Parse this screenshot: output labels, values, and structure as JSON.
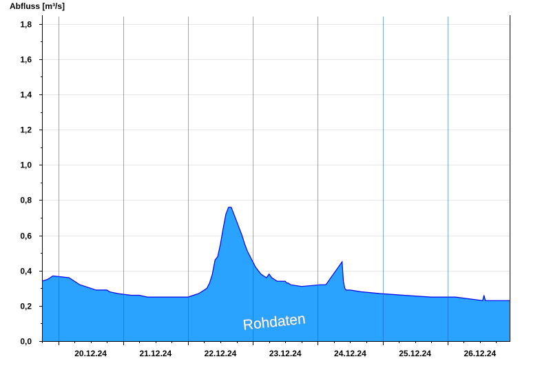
{
  "chart_data": {
    "type": "area",
    "ylabel": "Abfluss [m³/s]",
    "ylim": [
      0,
      1.85
    ],
    "yticks": [
      "0,0",
      "0,2",
      "0,4",
      "0,6",
      "0,8",
      "1,0",
      "1,2",
      "1,4",
      "1,6",
      "1,8"
    ],
    "ytick_values": [
      0,
      0.2,
      0.4,
      0.6,
      0.8,
      1.0,
      1.2,
      1.4,
      1.6,
      1.8
    ],
    "xlim": [
      "2024-12-19 18:00",
      "2024-12-26 23:00"
    ],
    "xticks": [
      "20.12.24",
      "21.12.24",
      "22.12.24",
      "23.12.24",
      "24.12.24",
      "25.12.24",
      "26.12.24"
    ],
    "xtick_dates": [
      "2024-12-20 12:00",
      "2024-12-21 12:00",
      "2024-12-22 12:00",
      "2024-12-23 12:00",
      "2024-12-24 12:00",
      "2024-12-25 12:00",
      "2024-12-26 12:00"
    ],
    "grid": true,
    "annotation": "Rohdaten",
    "area_color": "#29a3ff",
    "line_color": "#0000ee",
    "series": [
      {
        "x": [
          "2024-12-19 18:00",
          "2024-12-19 20:00",
          "2024-12-19 21:00",
          "2024-12-19 22:00",
          "2024-12-20 04:00",
          "2024-12-20 05:00",
          "2024-12-20 07:00",
          "2024-12-20 08:00",
          "2024-12-20 10:00",
          "2024-12-20 14:00",
          "2024-12-20 18:00",
          "2024-12-20 19:00",
          "2024-12-20 22:00",
          "2024-12-21 03:00",
          "2024-12-21 06:00",
          "2024-12-21 09:00",
          "2024-12-22 00:00",
          "2024-12-22 02:00",
          "2024-12-22 04:00",
          "2024-12-22 05:00",
          "2024-12-22 06:00",
          "2024-12-22 07:00",
          "2024-12-22 08:00",
          "2024-12-22 09:00",
          "2024-12-22 10:00",
          "2024-12-22 11:00",
          "2024-12-22 12:00",
          "2024-12-22 13:00",
          "2024-12-22 14:00",
          "2024-12-22 15:00",
          "2024-12-22 16:00",
          "2024-12-22 16:30",
          "2024-12-22 17:00",
          "2024-12-22 18:00",
          "2024-12-22 19:00",
          "2024-12-22 20:00",
          "2024-12-22 21:00",
          "2024-12-22 22:00",
          "2024-12-22 23:00",
          "2024-12-23 00:00",
          "2024-12-23 01:00",
          "2024-12-23 02:00",
          "2024-12-23 03:00",
          "2024-12-23 04:00",
          "2024-12-23 05:00",
          "2024-12-23 06:00",
          "2024-12-23 07:00",
          "2024-12-23 08:00",
          "2024-12-23 09:00",
          "2024-12-23 10:00",
          "2024-12-23 11:00",
          "2024-12-23 12:00",
          "2024-12-23 12:30",
          "2024-12-23 13:00",
          "2024-12-23 14:00",
          "2024-12-23 18:00",
          "2024-12-24 01:00",
          "2024-12-24 03:00",
          "2024-12-24 09:00",
          "2024-12-24 09:30",
          "2024-12-24 10:00",
          "2024-12-24 10:30",
          "2024-12-24 11:00",
          "2024-12-24 12:00",
          "2024-12-24 16:00",
          "2024-12-24 23:00",
          "2024-12-25 08:00",
          "2024-12-25 18:00",
          "2024-12-26 03:00",
          "2024-12-26 13:00",
          "2024-12-26 13:30",
          "2024-12-26 14:00",
          "2024-12-26 23:00"
        ],
        "y": [
          0.34,
          0.35,
          0.36,
          0.37,
          0.36,
          0.35,
          0.33,
          0.32,
          0.31,
          0.29,
          0.29,
          0.28,
          0.27,
          0.26,
          0.26,
          0.25,
          0.25,
          0.26,
          0.27,
          0.28,
          0.29,
          0.3,
          0.33,
          0.38,
          0.46,
          0.48,
          0.55,
          0.64,
          0.72,
          0.76,
          0.76,
          0.74,
          0.72,
          0.68,
          0.64,
          0.6,
          0.55,
          0.51,
          0.48,
          0.45,
          0.42,
          0.4,
          0.38,
          0.37,
          0.36,
          0.38,
          0.36,
          0.35,
          0.34,
          0.34,
          0.34,
          0.34,
          0.33,
          0.33,
          0.32,
          0.31,
          0.32,
          0.32,
          0.45,
          0.34,
          0.3,
          0.29,
          0.29,
          0.29,
          0.28,
          0.27,
          0.26,
          0.25,
          0.25,
          0.23,
          0.26,
          0.23,
          0.23
        ]
      }
    ]
  }
}
